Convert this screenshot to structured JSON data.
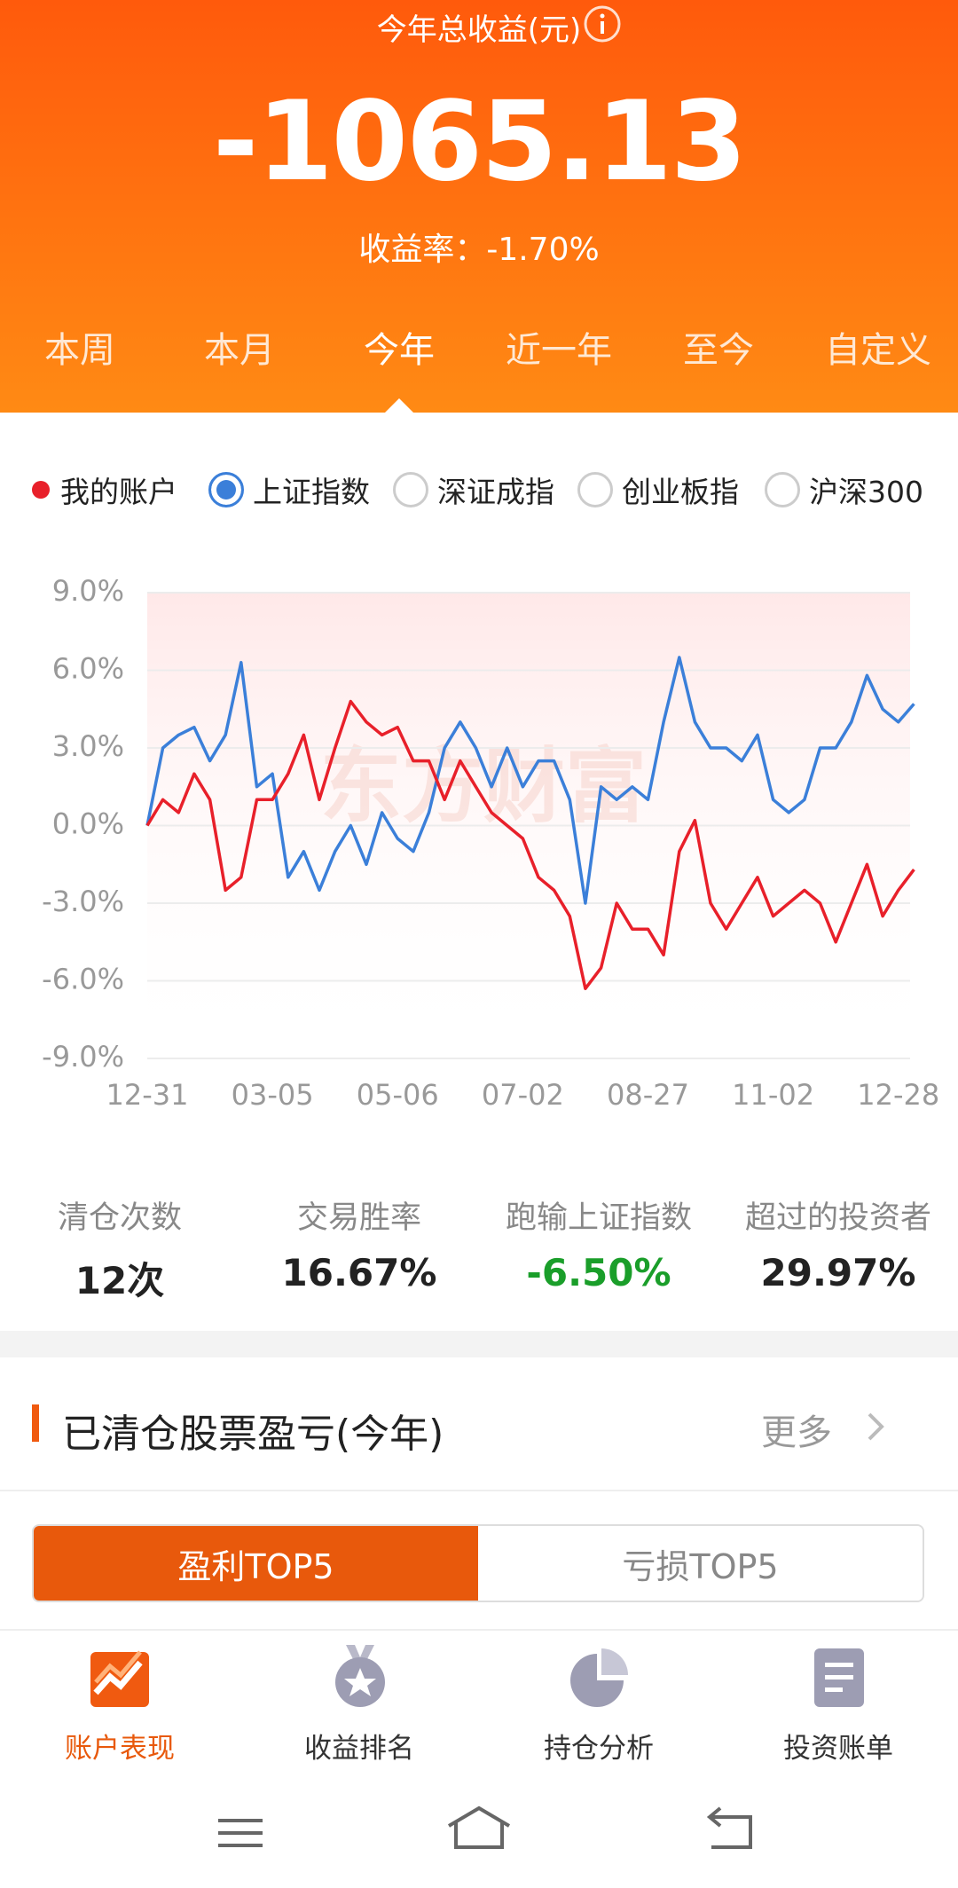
{
  "header": {
    "title": "今年总收益(元)",
    "total": "-1065.13",
    "rate_label": "收益率：",
    "rate": "-1.70%"
  },
  "period_tabs": {
    "items": [
      "本周",
      "本月",
      "今年",
      "近一年",
      "至今",
      "自定义"
    ],
    "selected": 2
  },
  "chart_data": {
    "type": "line",
    "watermark": "东方财富",
    "categories": [
      "12-31",
      null,
      null,
      null,
      null,
      null,
      null,
      null,
      "03-05",
      null,
      null,
      null,
      null,
      null,
      null,
      null,
      "05-06",
      null,
      null,
      null,
      null,
      null,
      null,
      null,
      "07-02",
      null,
      null,
      null,
      null,
      null,
      null,
      null,
      "08-27",
      null,
      null,
      null,
      null,
      null,
      null,
      null,
      "11-02",
      null,
      null,
      null,
      null,
      null,
      null,
      null,
      "12-28",
      null
    ],
    "series": [
      {
        "name": "我的账户",
        "color": "#e8202a",
        "values": [
          0,
          1,
          0.5,
          2,
          1,
          -2.5,
          -2,
          1,
          1,
          2,
          3.5,
          1,
          3,
          4.8,
          4,
          3.5,
          3.8,
          2.5,
          2.5,
          1,
          2.5,
          1.5,
          0.5,
          0,
          -0.5,
          -2,
          -2.5,
          -3.5,
          -6.3,
          -5.5,
          -3,
          -4,
          -4,
          -5,
          -1,
          0.2,
          -3,
          -4,
          -3,
          -2,
          -3.5,
          -3,
          -2.5,
          -3,
          -4.5,
          -3,
          -1.5,
          -3.5,
          -2.5,
          -1.7
        ]
      },
      {
        "name": "上证指数",
        "color": "#3b7fd9",
        "values": [
          0,
          3,
          3.5,
          3.8,
          2.5,
          3.5,
          6.3,
          1.5,
          2,
          -2,
          -1,
          -2.5,
          -1,
          0,
          -1.5,
          0.5,
          -0.5,
          -1,
          0.5,
          3,
          4,
          3,
          1.5,
          3,
          1.5,
          2.5,
          2.5,
          1,
          -3,
          1.5,
          1,
          1.5,
          1,
          4,
          6.5,
          4,
          3,
          3,
          2.5,
          3.5,
          1,
          0.5,
          1,
          3,
          3,
          4,
          5.8,
          4.5,
          4,
          4.7
        ]
      }
    ],
    "other_indices": [
      "深证成指",
      "创业板指",
      "沪深300"
    ],
    "ylim": [
      -9,
      9
    ],
    "yticks": [
      {
        "value": -9,
        "label": "-9.0%"
      },
      {
        "value": -6,
        "label": "-6.0%"
      },
      {
        "value": -3,
        "label": "-3.0%"
      },
      {
        "value": 0,
        "label": "0.0%"
      },
      {
        "value": 3,
        "label": "3.0%"
      },
      {
        "value": 6,
        "label": "6.0%"
      },
      {
        "value": 9,
        "label": "9.0%"
      }
    ],
    "grid": true
  },
  "stats": [
    {
      "label": "清仓次数",
      "value": "12次",
      "color": "#222222"
    },
    {
      "label": "交易胜率",
      "value": "16.67%",
      "color": "#222222"
    },
    {
      "label": "跑输上证指数",
      "value": "-6.50%",
      "color": "#1a9e2a"
    },
    {
      "label": "超过的投资者",
      "value": "29.97%",
      "color": "#222222"
    }
  ],
  "section": {
    "title": "已清仓股票盈亏(今年)",
    "more": "更多"
  },
  "toggle": {
    "items": [
      "盈利TOP5",
      "亏损TOP5"
    ],
    "selected": 0
  },
  "bottom_nav": {
    "items": [
      "账户表现",
      "收益排名",
      "持仓分析",
      "投资账单"
    ],
    "selected": 0
  }
}
